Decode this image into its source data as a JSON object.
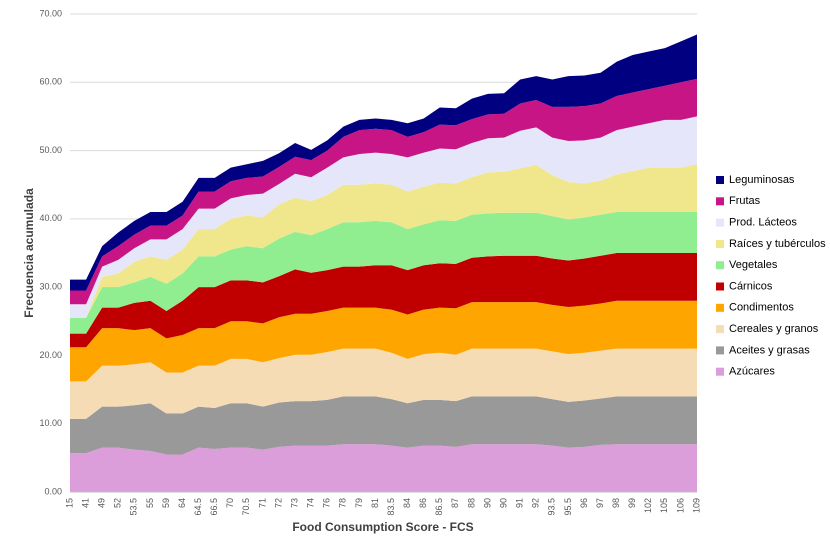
{
  "chart_data": {
    "type": "stacked-area",
    "x_label": "Food Consumption Score - FCS",
    "y_label": "Frecuencia acumulada",
    "categories": [
      "15",
      "41",
      "49",
      "52",
      "53.5",
      "55",
      "59",
      "64",
      "64.5",
      "66.5",
      "70",
      "70.5",
      "71",
      "72",
      "73",
      "74",
      "76",
      "78",
      "79",
      "81",
      "83.5",
      "84",
      "86",
      "86.5",
      "87",
      "88",
      "90",
      "90",
      "91",
      "92",
      "93.5",
      "95.5",
      "96",
      "97",
      "98",
      "99",
      "102",
      "105",
      "106",
      "109"
    ],
    "ylim": [
      0,
      70
    ],
    "yticks": [
      {
        "value": 0,
        "label": "0.00"
      },
      {
        "value": 10,
        "label": "10.00"
      },
      {
        "value": 20,
        "label": "20.00"
      },
      {
        "value": 30,
        "label": "30.00"
      },
      {
        "value": 40,
        "label": "40.00"
      },
      {
        "value": 50,
        "label": "50.00"
      },
      {
        "value": 60,
        "label": "60.00"
      },
      {
        "value": 70,
        "label": "70.00"
      }
    ],
    "grid": true,
    "legend": "right",
    "series": [
      {
        "name": "Azúcares",
        "color": "#dc9ddb",
        "values": [
          5.7,
          5.7,
          6.5,
          6.5,
          6.2,
          6,
          5.5,
          5.5,
          6.5,
          6.3,
          6.5,
          6.5,
          6.2,
          6.6,
          6.8,
          6.8,
          6.8,
          7,
          7,
          7,
          6.8,
          6.5,
          6.8,
          6.8,
          6.6,
          7,
          7,
          7,
          7,
          7,
          6.8,
          6.5,
          6.6,
          6.9,
          7,
          7,
          7,
          7,
          7,
          7
        ]
      },
      {
        "name": "Aceites y grasas",
        "color": "#999999",
        "values": [
          5,
          5,
          6,
          6,
          6.5,
          7,
          6,
          6,
          6,
          6,
          6.5,
          6.5,
          6.3,
          6.5,
          6.5,
          6.5,
          6.7,
          7,
          7,
          7,
          6.8,
          6.5,
          6.7,
          6.7,
          6.7,
          7,
          7,
          7,
          7,
          7,
          6.8,
          6.7,
          6.8,
          6.8,
          7,
          7,
          7,
          7,
          7,
          7
        ]
      },
      {
        "name": "Cereales y granos",
        "color": "#f5dcb4",
        "values": [
          5.5,
          5.5,
          6,
          6,
          6,
          6,
          6,
          6,
          6,
          6.2,
          6.5,
          6.5,
          6.5,
          6.5,
          6.8,
          6.8,
          7,
          7,
          7,
          7,
          6.8,
          6.5,
          6.7,
          6.9,
          6.8,
          7,
          7,
          7,
          7,
          7,
          7,
          7,
          7,
          7,
          7,
          7,
          7,
          7,
          7,
          7
        ]
      },
      {
        "name": "Condimentos",
        "color": "#ffa500",
        "values": [
          5,
          5,
          5.5,
          5.5,
          5,
          5,
          5,
          5.5,
          5.5,
          5.5,
          5.5,
          5.5,
          5.7,
          6,
          6,
          6,
          6,
          6,
          6,
          6,
          6.3,
          6.5,
          6.5,
          6.6,
          6.8,
          6.8,
          6.8,
          6.8,
          6.8,
          6.8,
          6.8,
          6.9,
          6.9,
          6.9,
          7,
          7,
          7,
          7,
          7,
          7
        ]
      },
      {
        "name": "Cárnicos",
        "color": "#c00000",
        "values": [
          2,
          2,
          3,
          3,
          4,
          4,
          4,
          5,
          6,
          6,
          6,
          6,
          6,
          6,
          6.5,
          6,
          6,
          6,
          6,
          6.2,
          6.5,
          6.5,
          6.5,
          6.5,
          6.5,
          6.5,
          6.7,
          6.8,
          6.8,
          6.8,
          6.8,
          6.8,
          6.9,
          7,
          7,
          7,
          7,
          7,
          7,
          7
        ]
      },
      {
        "name": "Vegetales",
        "color": "#90ee90",
        "values": [
          2.3,
          2.3,
          3,
          3,
          3,
          3.5,
          4,
          4,
          4.5,
          4.5,
          4.5,
          5,
          5,
          5.5,
          5.5,
          5.5,
          6,
          6.5,
          6.5,
          6.5,
          6.3,
          6,
          6,
          6.3,
          6.3,
          6.3,
          6.3,
          6.3,
          6.3,
          6.3,
          6.2,
          6,
          6,
          6,
          6,
          6,
          6,
          6,
          6,
          6
        ]
      },
      {
        "name": "Raíces y tubérculos",
        "color": "#f0e68c",
        "values": [
          0,
          0,
          1.5,
          2,
          3,
          3,
          3.5,
          3.5,
          4,
          4,
          4.5,
          4.5,
          4.5,
          5,
          5,
          5,
          5,
          5.5,
          5.5,
          5.5,
          5.5,
          5.5,
          5.5,
          5.5,
          5.5,
          5.5,
          6,
          6,
          6.5,
          7,
          6,
          5.5,
          5,
          5,
          5.5,
          6,
          6.5,
          6.5,
          6.5,
          7
        ]
      },
      {
        "name": "Prod. Lácteos",
        "color": "#e6e6fa",
        "values": [
          2,
          2,
          1.5,
          2,
          2,
          2.5,
          3,
          3,
          3,
          3,
          3,
          3,
          3.5,
          3,
          3.5,
          3.5,
          4,
          4,
          4.5,
          4.5,
          4.5,
          5,
          5,
          5,
          5,
          5,
          5,
          5,
          5.5,
          5.5,
          5.5,
          6,
          6.3,
          6.3,
          6.5,
          6.5,
          6.5,
          7,
          7,
          7
        ]
      },
      {
        "name": "Frutas",
        "color": "#c71585",
        "values": [
          2,
          2,
          1.5,
          2,
          2,
          2,
          2,
          2,
          2.5,
          2.5,
          2.5,
          2.5,
          2.5,
          2.5,
          2.5,
          2.5,
          2.5,
          3,
          3.5,
          3.5,
          3.5,
          3,
          3,
          3.5,
          3.5,
          3.5,
          3.5,
          3.5,
          4,
          4,
          4.5,
          5,
          5,
          5,
          5,
          5,
          5,
          5,
          5.5,
          5.5
        ]
      },
      {
        "name": "Leguminosas",
        "color": "#000080",
        "values": [
          1.6,
          1.6,
          1.5,
          2,
          2,
          2,
          2,
          2,
          2,
          2,
          2,
          2,
          2.3,
          2,
          2,
          1.5,
          1.5,
          1.5,
          1.5,
          1.5,
          1.5,
          2,
          2,
          2.5,
          2.5,
          3,
          3,
          3,
          3.5,
          3.5,
          4,
          4.5,
          4.5,
          4.5,
          5,
          5.5,
          5.5,
          5.5,
          6,
          6.5
        ]
      }
    ]
  }
}
